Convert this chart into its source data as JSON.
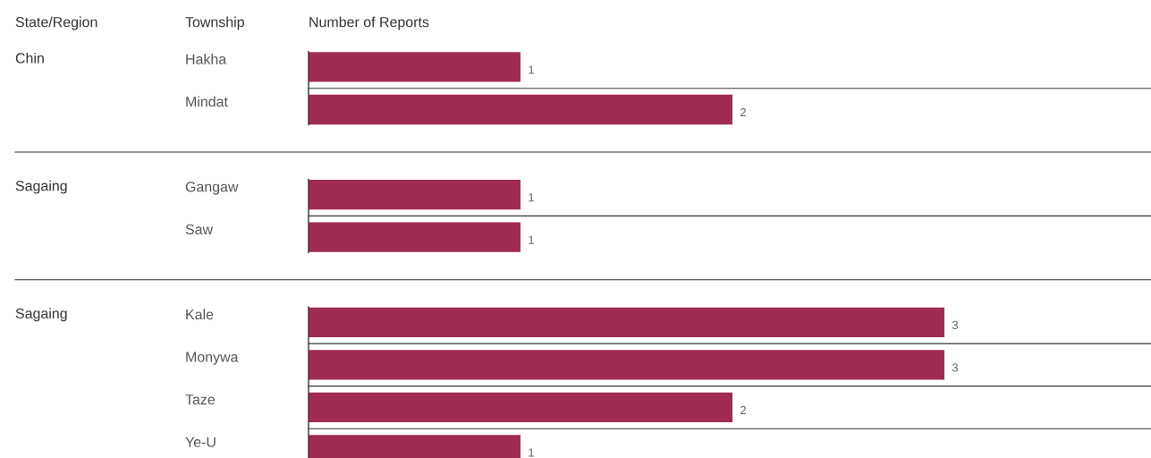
{
  "chart_data": {
    "type": "bar",
    "orientation": "horizontal",
    "xlabel": "Number of Reports",
    "ylabel": "Township",
    "categories": [
      "Hakha",
      "Mindat",
      null,
      "Gangaw",
      "Saw",
      null,
      "Kale",
      "Monywa",
      "Taze",
      "Ye-U"
    ],
    "values": [
      1,
      2,
      null,
      1,
      1,
      null,
      3,
      3,
      2,
      1
    ],
    "color": "#a02c52",
    "data_labels": true,
    "grid": true,
    "legend": false,
    "annotations": [
      "State/Region",
      "Chin",
      "Sagaing",
      "Sagaing"
    ]
  }
}
